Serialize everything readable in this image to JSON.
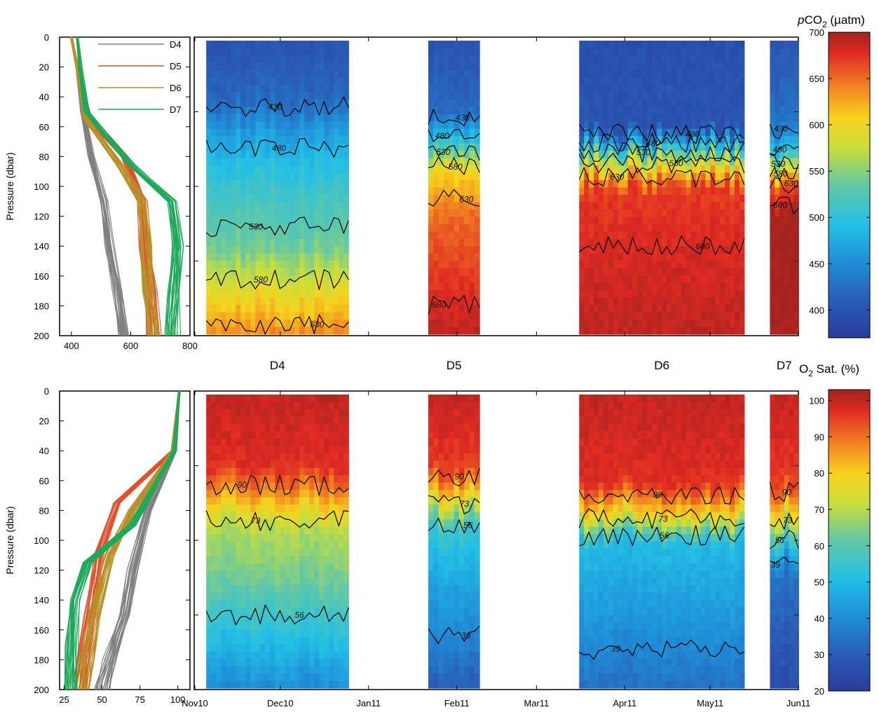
{
  "pco2_profiles": {
    "ylabel": "Pressure (dbar)",
    "y_ticks": [
      "0",
      "20",
      "40",
      "60",
      "80",
      "100",
      "120",
      "140",
      "160",
      "180",
      "200"
    ],
    "x_ticks": [
      "400",
      "600",
      "800"
    ],
    "legend": [
      {
        "label": "D4",
        "color": "#808080"
      },
      {
        "label": "D5",
        "color": "#e0502a"
      },
      {
        "label": "D6",
        "color": "#b8902a"
      },
      {
        "label": "D7",
        "color": "#1fa85a"
      }
    ]
  },
  "o2_profiles": {
    "ylabel": "Pressure (dbar)",
    "y_ticks": [
      "0",
      "20",
      "40",
      "60",
      "80",
      "100",
      "120",
      "140",
      "160",
      "180",
      "200"
    ],
    "x_ticks": [
      "25",
      "50",
      "75",
      "100"
    ]
  },
  "deployment_labels": [
    "D4",
    "D5",
    "D6",
    "D7"
  ],
  "time_axis": [
    "Nov10",
    "Dec10",
    "Jan11",
    "Feb11",
    "Mar11",
    "Apr11",
    "May11",
    "Jun11"
  ],
  "pco2_colorbar": {
    "title_italic": "p",
    "title_main": "CO",
    "title_sub": "2",
    "title_unit": " (µatm)",
    "ticks": [
      "400",
      "450",
      "500",
      "550",
      "600",
      "650",
      "700"
    ]
  },
  "o2_colorbar": {
    "title_main": "O",
    "title_sub": "2",
    "title_unit": " Sat. (%)",
    "ticks": [
      "20",
      "30",
      "40",
      "50",
      "60",
      "70",
      "80",
      "90",
      "100"
    ]
  },
  "pco2_contour_labels": [
    "430",
    "430",
    "430",
    "480",
    "480",
    "480",
    "530",
    "530",
    "580",
    "580",
    "530",
    "530",
    "480",
    "480",
    "480",
    "480",
    "530",
    "630",
    "630",
    "680",
    "680",
    "680",
    "530",
    "580",
    "630",
    "580",
    "630",
    "630",
    "630",
    "680",
    "430",
    "430",
    "480",
    "480",
    "530",
    "580",
    "680",
    "680",
    "680",
    "680",
    "630",
    "680",
    "680",
    "630",
    "630",
    "680",
    "480",
    "530",
    "580",
    "680",
    "680"
  ],
  "o2_contour_labels": [
    "90",
    "90",
    "90",
    "73",
    "73",
    "73",
    "73",
    "73",
    "56",
    "56",
    "56",
    "39",
    "39",
    "39",
    "56",
    "39",
    "90",
    "73",
    "56",
    "39",
    "90",
    "73",
    "56",
    "39",
    "39",
    "39",
    "39",
    "39",
    "90",
    "56",
    "39",
    "39",
    "90",
    "73",
    "73",
    "73"
  ],
  "chart_data": [
    {
      "type": "line",
      "title": "",
      "ylabel": "Pressure (dbar)",
      "xlabel": "",
      "xlim": [
        360,
        800
      ],
      "ylim": [
        200,
        0
      ],
      "series": [
        {
          "name": "D4",
          "profile": [
            [
              400,
              0
            ],
            [
              420,
              20
            ],
            [
              440,
              50
            ],
            [
              470,
              80
            ],
            [
              510,
              110
            ],
            [
              530,
              140
            ],
            [
              560,
              170
            ],
            [
              580,
              200
            ]
          ]
        },
        {
          "name": "D5",
          "profile": [
            [
              400,
              0
            ],
            [
              420,
              20
            ],
            [
              460,
              55
            ],
            [
              580,
              80
            ],
            [
              640,
              110
            ],
            [
              650,
              140
            ],
            [
              670,
              170
            ],
            [
              680,
              200
            ]
          ]
        },
        {
          "name": "D6",
          "profile": [
            [
              400,
              0
            ],
            [
              420,
              20
            ],
            [
              450,
              55
            ],
            [
              560,
              85
            ],
            [
              640,
              110
            ],
            [
              650,
              140
            ],
            [
              660,
              170
            ],
            [
              680,
              200
            ]
          ]
        },
        {
          "name": "D7",
          "profile": [
            [
              420,
              0
            ],
            [
              430,
              20
            ],
            [
              450,
              50
            ],
            [
              600,
              85
            ],
            [
              740,
              110
            ],
            [
              760,
              140
            ],
            [
              750,
              170
            ],
            [
              740,
              200
            ]
          ]
        }
      ]
    },
    {
      "type": "heatmap",
      "title": "",
      "ylabel": "",
      "variable_unit": "µatm",
      "ylim": [
        200,
        0
      ],
      "clim": [
        370,
        700
      ],
      "contour_levels": [
        430,
        480,
        530,
        580,
        630,
        680
      ],
      "deployments": [
        {
          "name": "D4",
          "start": "2010-11-05",
          "end": "2010-12-25",
          "surface_value": 400,
          "values_by_depth": [
            [
              0,
              400
            ],
            [
              40,
              420
            ],
            [
              60,
              460
            ],
            [
              80,
              490
            ],
            [
              100,
              510
            ],
            [
              140,
              540
            ],
            [
              180,
              610
            ],
            [
              200,
              640
            ]
          ]
        },
        {
          "name": "D5",
          "start": "2011-01-22",
          "end": "2011-02-09",
          "surface_value": 400,
          "values_by_depth": [
            [
              0,
              400
            ],
            [
              50,
              420
            ],
            [
              70,
              500
            ],
            [
              90,
              600
            ],
            [
              120,
              650
            ],
            [
              160,
              670
            ],
            [
              200,
              690
            ]
          ]
        },
        {
          "name": "D6",
          "start": "2011-03-16",
          "end": "2011-05-13",
          "surface_value": 395,
          "values_by_depth": [
            [
              0,
              395
            ],
            [
              60,
              400
            ],
            [
              80,
              560
            ],
            [
              100,
              670
            ],
            [
              140,
              680
            ],
            [
              200,
              690
            ]
          ]
        },
        {
          "name": "D7",
          "start": "2011-05-22",
          "end": "2011-06-01",
          "surface_value": 400,
          "values_by_depth": [
            [
              0,
              400
            ],
            [
              60,
              430
            ],
            [
              80,
              500
            ],
            [
              100,
              650
            ],
            [
              120,
              700
            ],
            [
              200,
              700
            ]
          ]
        }
      ]
    },
    {
      "type": "line",
      "title": "",
      "ylabel": "Pressure (dbar)",
      "xlabel": "",
      "xlim": [
        22,
        108
      ],
      "ylim": [
        200,
        0
      ],
      "series": [
        {
          "name": "D4",
          "profile": [
            [
              101,
              0
            ],
            [
              98,
              40
            ],
            [
              80,
              80
            ],
            [
              70,
              120
            ],
            [
              65,
              150
            ],
            [
              55,
              180
            ],
            [
              50,
              200
            ]
          ]
        },
        {
          "name": "D5",
          "profile": [
            [
              101,
              0
            ],
            [
              97,
              40
            ],
            [
              60,
              75
            ],
            [
              48,
              110
            ],
            [
              42,
              150
            ],
            [
              38,
              180
            ],
            [
              35,
              200
            ]
          ]
        },
        {
          "name": "D6",
          "profile": [
            [
              101,
              0
            ],
            [
              97,
              40
            ],
            [
              70,
              80
            ],
            [
              55,
              110
            ],
            [
              45,
              150
            ],
            [
              40,
              180
            ],
            [
              38,
              200
            ]
          ]
        },
        {
          "name": "D7",
          "profile": [
            [
              101,
              0
            ],
            [
              98,
              40
            ],
            [
              70,
              90
            ],
            [
              40,
              115
            ],
            [
              32,
              140
            ],
            [
              30,
              170
            ],
            [
              29,
              200
            ]
          ]
        }
      ]
    },
    {
      "type": "heatmap",
      "title": "",
      "ylabel": "",
      "variable_unit": "%",
      "ylim": [
        200,
        0
      ],
      "clim": [
        20,
        103
      ],
      "contour_levels": [
        39,
        56,
        73,
        90
      ],
      "deployments": [
        {
          "name": "D4",
          "start": "2010-11-05",
          "end": "2010-12-25",
          "surface_value": 100,
          "values_by_depth": [
            [
              0,
              100
            ],
            [
              50,
              97
            ],
            [
              70,
              85
            ],
            [
              90,
              70
            ],
            [
              130,
              62
            ],
            [
              170,
              50
            ],
            [
              200,
              40
            ]
          ]
        },
        {
          "name": "D5",
          "start": "2011-01-22",
          "end": "2011-02-09",
          "surface_value": 100,
          "values_by_depth": [
            [
              0,
              100
            ],
            [
              50,
              95
            ],
            [
              70,
              78
            ],
            [
              90,
              55
            ],
            [
              130,
              45
            ],
            [
              170,
              38
            ],
            [
              200,
              30
            ]
          ]
        },
        {
          "name": "D6",
          "start": "2011-03-16",
          "end": "2011-05-13",
          "surface_value": 100,
          "values_by_depth": [
            [
              0,
              100
            ],
            [
              60,
              97
            ],
            [
              80,
              80
            ],
            [
              100,
              50
            ],
            [
              140,
              44
            ],
            [
              180,
              38
            ],
            [
              200,
              34
            ]
          ]
        },
        {
          "name": "D7",
          "start": "2011-05-22",
          "end": "2011-06-01",
          "surface_value": 100,
          "values_by_depth": [
            [
              0,
              100
            ],
            [
              60,
              95
            ],
            [
              80,
              80
            ],
            [
              100,
              55
            ],
            [
              120,
              35
            ],
            [
              200,
              25
            ]
          ]
        }
      ]
    }
  ]
}
